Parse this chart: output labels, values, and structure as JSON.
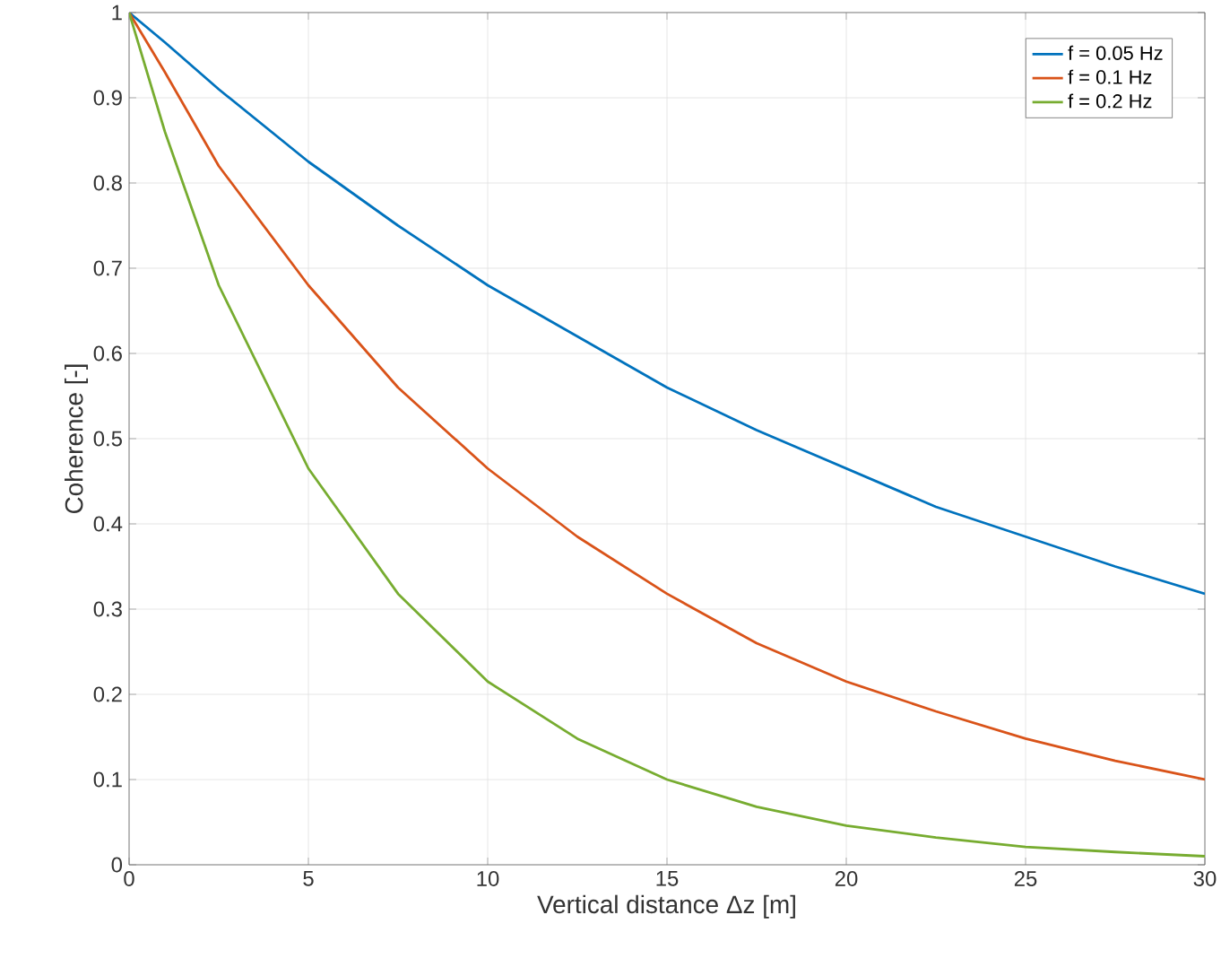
{
  "chart_data": {
    "type": "line",
    "xlabel": "Vertical distance Δz [m]",
    "ylabel": "Coherence [-]",
    "x": [
      0,
      1,
      2.5,
      5,
      7.5,
      10,
      12.5,
      15,
      17.5,
      20,
      22.5,
      25,
      27.5,
      30
    ],
    "series": [
      {
        "name": "f = 0.05 Hz",
        "color": "#0072bd",
        "values": [
          1,
          0.965,
          0.91,
          0.825,
          0.75,
          0.68,
          0.62,
          0.56,
          0.51,
          0.465,
          0.42,
          0.385,
          0.35,
          0.318
        ]
      },
      {
        "name": "f = 0.1 Hz",
        "color": "#d95319",
        "values": [
          1,
          0.93,
          0.82,
          0.68,
          0.56,
          0.465,
          0.385,
          0.318,
          0.26,
          0.215,
          0.18,
          0.148,
          0.122,
          0.1
        ]
      },
      {
        "name": "f = 0.2 Hz",
        "color": "#77ac30",
        "values": [
          1,
          0.86,
          0.68,
          0.465,
          0.318,
          0.215,
          0.148,
          0.1,
          0.068,
          0.046,
          0.032,
          0.021,
          0.015,
          0.01
        ]
      }
    ],
    "xlim": [
      0,
      30
    ],
    "ylim": [
      0,
      1
    ],
    "xticks": [
      0,
      5,
      10,
      15,
      20,
      25,
      30
    ],
    "yticks": [
      0,
      0.1,
      0.2,
      0.3,
      0.4,
      0.5,
      0.6,
      0.7,
      0.8,
      0.9,
      1
    ],
    "grid": true,
    "legend": "top right"
  }
}
